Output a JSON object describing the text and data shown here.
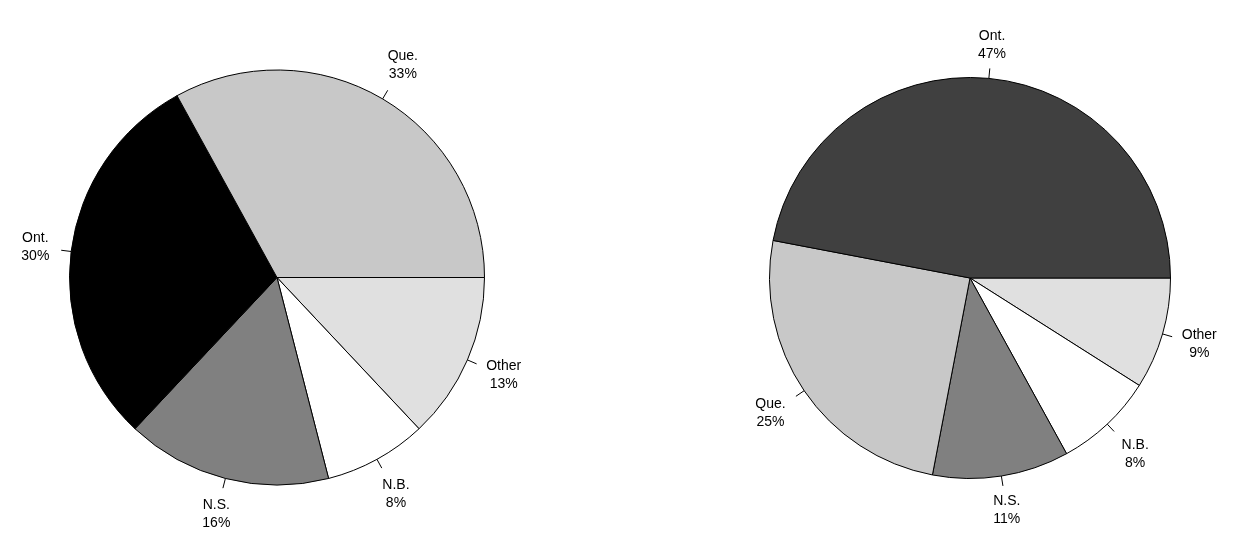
{
  "chart_data": [
    {
      "type": "pie",
      "categories": [
        "Other",
        "N.B.",
        "N.S.",
        "Ont.",
        "Que."
      ],
      "values": [
        13,
        8,
        16,
        30,
        33
      ],
      "value_labels": [
        "13%",
        "8%",
        "16%",
        "30%",
        "33%"
      ],
      "colors": [
        "#e0e0e0",
        "#ffffff",
        "#808080",
        "#000000",
        "#c8c8c8"
      ],
      "legend": false
    },
    {
      "type": "pie",
      "categories": [
        "Other",
        "N.B.",
        "N.S.",
        "Que.",
        "Ont."
      ],
      "values": [
        9,
        8,
        11,
        25,
        47
      ],
      "value_labels": [
        "9%",
        "8%",
        "11%",
        "25%",
        "47%"
      ],
      "colors": [
        "#e0e0e0",
        "#ffffff",
        "#808080",
        "#c8c8c8",
        "#404040"
      ],
      "legend": false
    }
  ]
}
